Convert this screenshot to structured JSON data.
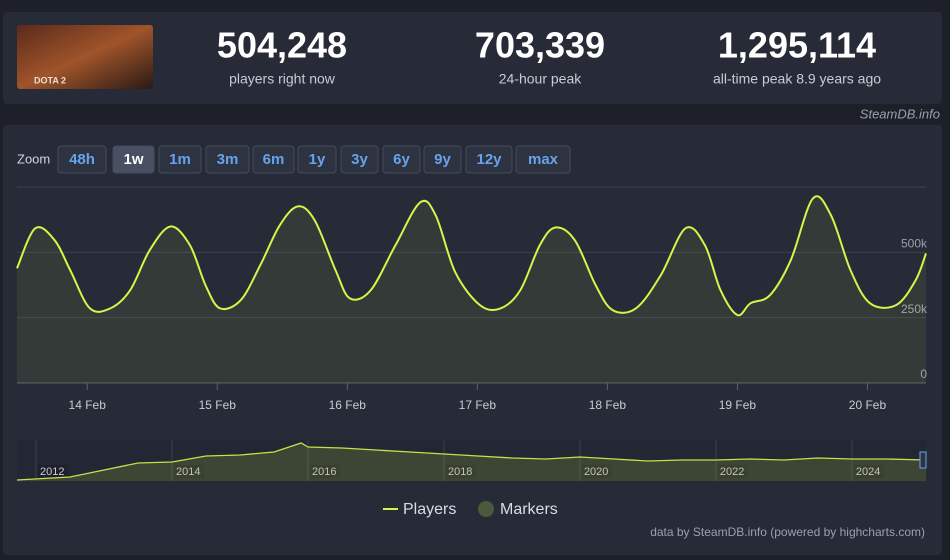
{
  "header": {
    "game_logo": "DOTA 2",
    "stats": [
      {
        "value": "504,248",
        "label": "players right now"
      },
      {
        "value": "703,339",
        "label": "24-hour peak"
      },
      {
        "value": "1,295,114",
        "label": "all-time peak 8.9 years ago"
      }
    ],
    "source": "SteamDB.info"
  },
  "zoom": {
    "label": "Zoom",
    "buttons": [
      "48h",
      "1w",
      "1m",
      "3m",
      "6m",
      "1y",
      "3y",
      "6y",
      "9y",
      "12y",
      "max"
    ],
    "active": 1
  },
  "chart_data": {
    "type": "line",
    "x": [
      13.46,
      13.6,
      13.75,
      13.87,
      14.02,
      14.18,
      14.33,
      14.48,
      14.64,
      14.79,
      14.91,
      15.02,
      15.18,
      15.33,
      15.48,
      15.62,
      15.75,
      15.91,
      16.02,
      16.18,
      16.37,
      16.56,
      16.68,
      16.83,
      17.02,
      17.18,
      17.33,
      17.48,
      17.6,
      17.75,
      17.91,
      18.04,
      18.22,
      18.41,
      18.6,
      18.75,
      18.87,
      19.0,
      19.1,
      19.25,
      19.41,
      19.58,
      19.72,
      19.87,
      20.02,
      20.22,
      20.37,
      20.45
    ],
    "series": [
      {
        "name": "Players",
        "color": "#d6f54a",
        "values": [
          439000,
          592000,
          546000,
          431000,
          286000,
          286000,
          355000,
          508000,
          599000,
          527000,
          374000,
          286000,
          317000,
          450000,
          603000,
          676000,
          622000,
          431000,
          324000,
          355000,
          527000,
          691000,
          641000,
          424000,
          298000,
          286000,
          355000,
          527000,
          595000,
          546000,
          374000,
          279000,
          286000,
          412000,
          592000,
          527000,
          355000,
          260000,
          305000,
          336000,
          470000,
          706000,
          641000,
          431000,
          305000,
          298000,
          393000,
          496000
        ]
      }
    ],
    "markers_legend": {
      "name": "Markers",
      "color": "#4b5a3d"
    },
    "xlim": [
      13.46,
      20.45
    ],
    "xticks": [
      {
        "value": 14,
        "label": "14 Feb"
      },
      {
        "value": 15,
        "label": "15 Feb"
      },
      {
        "value": 16,
        "label": "16 Feb"
      },
      {
        "value": 17,
        "label": "17 Feb"
      },
      {
        "value": 18,
        "label": "18 Feb"
      },
      {
        "value": 19,
        "label": "19 Feb"
      },
      {
        "value": 20,
        "label": "20 Feb"
      }
    ],
    "ylim": [
      0,
      750000
    ],
    "yticks": [
      0,
      {
        "value": 250000,
        "label": "250k"
      },
      {
        "value": 500000,
        "label": "500k"
      }
    ],
    "grid": true,
    "legend": "bottom",
    "navigator": {
      "x": [
        2011.72,
        2012.5,
        2013,
        2013.5,
        2014,
        2014.5,
        2015,
        2015.5,
        2015.9,
        2016,
        2016.5,
        2017,
        2017.5,
        2018,
        2018.5,
        2019,
        2019.5,
        2020,
        2020.5,
        2021,
        2021.5,
        2022,
        2022.5,
        2023,
        2023.5,
        2024,
        2024.5,
        2025.09
      ],
      "values": [
        32000,
        127000,
        349000,
        571000,
        602000,
        793000,
        824000,
        920000,
        1205000,
        1078000,
        1046000,
        983000,
        920000,
        856000,
        793000,
        729000,
        698000,
        761000,
        698000,
        634000,
        666000,
        666000,
        698000,
        666000,
        729000,
        698000,
        698000,
        666000
      ],
      "xlim": [
        2011.72,
        2025.09
      ],
      "ylim": [
        0,
        1300000
      ],
      "xticks": [
        2012,
        2014,
        2016,
        2018,
        2020,
        2022,
        2024
      ]
    },
    "credits": "data by SteamDB.info (powered by highcharts.com)"
  }
}
